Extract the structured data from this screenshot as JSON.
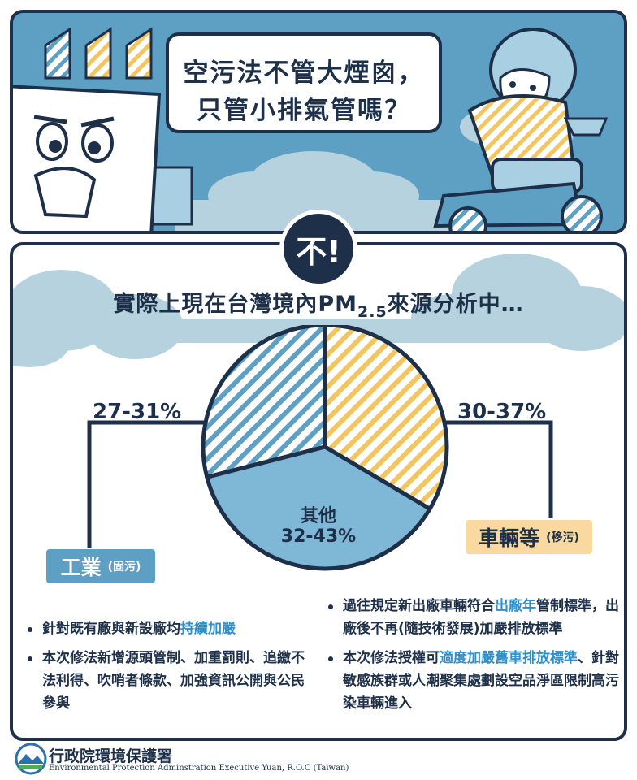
{
  "speech": {
    "line1": "空污法不管大煙囪，",
    "line2": "只管小排氣管嗎？"
  },
  "answer": "不!",
  "headline": {
    "prefix": "實際上現在台灣境內PM",
    "sub": "2.5",
    "suffix": "來源分析中…"
  },
  "chart_data": {
    "type": "pie",
    "slices": [
      {
        "label": "工業",
        "range": "27-31%",
        "value": 29,
        "fill": "stripe-blue"
      },
      {
        "label": "車輛等",
        "range": "30-37%",
        "value": 33.5,
        "fill": "stripe-yellow"
      },
      {
        "label": "其他",
        "range": "32-43%",
        "value": 37.5,
        "fill": "solid-blue"
      }
    ]
  },
  "pie_labels": {
    "industry_pct": "27-31%",
    "vehicle_pct": "30-37%",
    "other_label": "其他",
    "other_pct": "32-43%"
  },
  "tags": {
    "industry": {
      "label": "工業",
      "sub": "(固污)"
    },
    "vehicle": {
      "label": "車輛等",
      "sub": "(移污)"
    }
  },
  "left_bullets": {
    "b1_pre": "針對既有廠與新設廠均",
    "b1_hl": "持續加嚴",
    "b2": "本次修法新增源頭管制、加重罰則、追繳不法利得、吹哨者條款、加強資訊公開與公民參與"
  },
  "right_bullets": {
    "b1_pre": "過往規定新出廠車輛符合",
    "b1_hl": "出廠年",
    "b1_post": "管制標準，出廠後不再(隨技術發展)加嚴排放標準",
    "b2_pre": "本次修法授權可",
    "b2_hl": "適度加嚴舊車排放標準",
    "b2_post": "、針對敏感族群或人潮聚集處劃設空品淨區限制高污染車輛進入"
  },
  "footer": {
    "org_zh": "行政院環境保護署",
    "org_en": "Environmental Protection Adminstration Executive Yuan, R.O.C (Taiwan)"
  },
  "colors": {
    "navy": "#1e3049",
    "blue": "#5e9fc4",
    "light_blue": "#a9cfe3",
    "yellow": "#f3c55e",
    "cloud": "#b6d2df",
    "highlight": "#2e8fc9"
  }
}
